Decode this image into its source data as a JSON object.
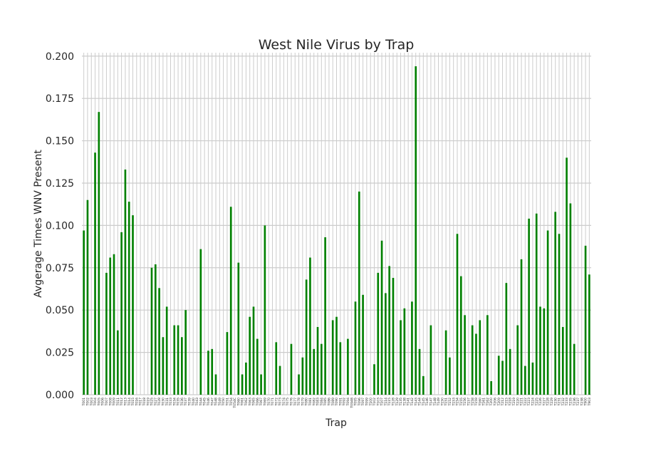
{
  "chart_data": {
    "type": "bar",
    "title": "West Nile Virus by Trap",
    "xlabel": "Trap",
    "ylabel": "Avgerage Times WNV Present",
    "ylim": [
      0,
      0.202
    ],
    "yticks": [
      "0.000",
      "0.025",
      "0.050",
      "0.075",
      "0.100",
      "0.125",
      "0.150",
      "0.175",
      "0.200"
    ],
    "grid": true,
    "bar_color": "#008000",
    "grid_color": "#cccccc",
    "categories": [
      "T001",
      "T002",
      "T003",
      "T004",
      "T005",
      "T006",
      "T007",
      "T008",
      "T009",
      "T011",
      "T012",
      "T013",
      "T014",
      "T015",
      "T016",
      "T017",
      "T018",
      "T019",
      "T025",
      "T027",
      "T028",
      "T030",
      "T031",
      "T033",
      "T034",
      "T035",
      "T036",
      "T037",
      "T039",
      "T040",
      "T043",
      "T044",
      "T045",
      "T046",
      "T047",
      "T048",
      "T049",
      "T050",
      "T051",
      "T054",
      "T054C",
      "T060",
      "T061",
      "T062",
      "T063",
      "T065",
      "T066",
      "T067",
      "T069",
      "T070",
      "T071",
      "T072",
      "T073",
      "T074",
      "T075",
      "T076",
      "T077",
      "T078",
      "T079",
      "T080",
      "T081",
      "T082",
      "T083",
      "T084",
      "T085",
      "T086",
      "T089",
      "T090",
      "T091",
      "T092",
      "T094",
      "T094B",
      "T095",
      "T096",
      "T097",
      "T099",
      "T100",
      "T102",
      "T103",
      "T107",
      "T114",
      "T115",
      "T128",
      "T129",
      "T135",
      "T138",
      "T141",
      "T142",
      "T143",
      "T144",
      "T145",
      "T146",
      "T147",
      "T148",
      "T149",
      "T150",
      "T151",
      "T152",
      "T153",
      "T154",
      "T155",
      "T156",
      "T157",
      "T158",
      "T159",
      "T160",
      "T161",
      "T162",
      "T200",
      "T206",
      "T209",
      "T212",
      "T215",
      "T218",
      "T219",
      "T220",
      "T221",
      "T222",
      "T223",
      "T224",
      "T225",
      "T226",
      "T227",
      "T228",
      "T229",
      "T230",
      "T231",
      "T232",
      "T233",
      "T235",
      "T236",
      "T237",
      "T238",
      "T900",
      "T903"
    ],
    "values": [
      0.097,
      0.115,
      0,
      0.143,
      0.167,
      0,
      0.072,
      0.081,
      0.083,
      0.038,
      0.096,
      0.133,
      0.114,
      0.106,
      0,
      0,
      0,
      0,
      0.075,
      0.077,
      0.063,
      0.034,
      0.052,
      0,
      0.041,
      0.041,
      0.034,
      0.05,
      0,
      0,
      0,
      0.086,
      0,
      0.026,
      0.027,
      0.012,
      0,
      0,
      0.037,
      0.111,
      0,
      0.078,
      0.012,
      0.019,
      0.046,
      0.052,
      0.033,
      0.012,
      0.1,
      0,
      0,
      0.031,
      0.017,
      0,
      0,
      0.03,
      0,
      0.012,
      0.022,
      0.068,
      0.081,
      0.027,
      0.04,
      0.03,
      0.093,
      0,
      0.044,
      0.046,
      0.031,
      0,
      0.033,
      0,
      0.055,
      0.12,
      0.059,
      0,
      0,
      0.018,
      0.072,
      0.091,
      0.06,
      0.076,
      0.069,
      0,
      0.044,
      0.051,
      0,
      0.055,
      0.194,
      0.027,
      0.011,
      0,
      0.041,
      0,
      0,
      0,
      0.038,
      0.022,
      0,
      0.095,
      0.07,
      0.047,
      0,
      0.041,
      0.036,
      0.044,
      0,
      0.047,
      0.008,
      0,
      0.023,
      0.02,
      0.066,
      0.027,
      0,
      0.041,
      0.08,
      0.017,
      0.104,
      0.019,
      0.107,
      0.052,
      0.051,
      0.097,
      0,
      0.108,
      0.095,
      0.04,
      0.14,
      0.113,
      0.03,
      0,
      0,
      0.088,
      0.071
    ]
  }
}
